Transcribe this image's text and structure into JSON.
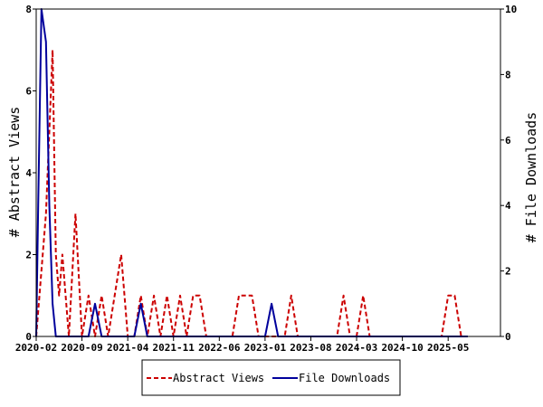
{
  "chart_data": {
    "type": "line",
    "ylabel_left": "# Abstract Views",
    "ylabel_right": "# File Downloads",
    "ylim_left": [
      0,
      8
    ],
    "ylim_right": [
      0,
      10
    ],
    "yticks_left": [
      "0",
      "2",
      "4",
      "6",
      "8"
    ],
    "yticks_right": [
      "0",
      "2",
      "4",
      "6",
      "8",
      "10"
    ],
    "xlim": [
      0,
      71
    ],
    "xticks": [
      {
        "month_index": 0,
        "label": "2020-02"
      },
      {
        "month_index": 7,
        "label": "2020-09"
      },
      {
        "month_index": 14,
        "label": "2021-04"
      },
      {
        "month_index": 21,
        "label": "2021-11"
      },
      {
        "month_index": 28,
        "label": "2022-06"
      },
      {
        "month_index": 35,
        "label": "2023-01"
      },
      {
        "month_index": 42,
        "label": "2023-08"
      },
      {
        "month_index": 49,
        "label": "2024-03"
      },
      {
        "month_index": 56,
        "label": "2024-10"
      },
      {
        "month_index": 63,
        "label": "2025-05"
      }
    ],
    "grid": false,
    "legend_position": "bottom",
    "series": [
      {
        "name": "Abstract Views",
        "axis": "left",
        "color": "#cc0000",
        "style": "dashed",
        "x": [
          0,
          0.5,
          1,
          1.5,
          2,
          2.5,
          3,
          3.5,
          4,
          5,
          6,
          7,
          8,
          9,
          10,
          11,
          12,
          13,
          14,
          15,
          16,
          17,
          18,
          19,
          20,
          21,
          22,
          23,
          24,
          25,
          26,
          27,
          28,
          29,
          30,
          31,
          32,
          33,
          34,
          35,
          36,
          37,
          38,
          39,
          40,
          41,
          42,
          43,
          44,
          45,
          46,
          47,
          48,
          49,
          50,
          51,
          52,
          53,
          54,
          55,
          56,
          57,
          58,
          59,
          60,
          61,
          62,
          63,
          64,
          65,
          66
        ],
        "values": [
          0,
          1,
          2,
          3,
          5,
          7,
          2,
          1,
          2,
          0,
          3,
          0,
          1,
          0,
          1,
          0,
          1,
          2,
          0,
          0,
          1,
          0,
          1,
          0,
          1,
          0,
          1,
          0,
          1,
          1,
          0,
          0,
          0,
          0,
          0,
          1,
          1,
          1,
          0,
          0,
          0,
          0,
          0,
          1,
          0,
          0,
          0,
          0,
          0,
          0,
          0,
          1,
          0,
          0,
          1,
          0,
          0,
          0,
          0,
          0,
          0,
          0,
          0,
          0,
          0,
          0,
          0,
          1,
          1,
          0,
          0
        ]
      },
      {
        "name": "File Downloads",
        "axis": "right",
        "color": "#00009c",
        "style": "solid",
        "x": [
          0,
          0.3,
          0.8,
          1.5,
          2,
          2.5,
          3,
          3.3,
          4,
          5,
          6,
          7,
          8,
          9,
          10,
          11,
          12,
          13,
          14,
          15,
          16,
          17,
          18,
          19,
          20,
          21,
          22,
          23,
          24,
          25,
          26,
          27,
          28,
          29,
          30,
          31,
          32,
          33,
          34,
          35,
          36,
          37,
          38,
          39,
          40,
          41,
          42,
          43,
          44,
          45,
          46,
          47,
          48,
          49,
          50,
          51,
          52,
          53,
          54,
          55,
          56,
          57,
          58,
          59,
          60,
          61,
          62,
          63,
          64,
          65,
          66
        ],
        "values": [
          0,
          4,
          10,
          9,
          4,
          1,
          0,
          0,
          0,
          0,
          0,
          0,
          0,
          1,
          0,
          0,
          0,
          0,
          0,
          0,
          1,
          0,
          0,
          0,
          0,
          0,
          0,
          0,
          0,
          0,
          0,
          0,
          0,
          0,
          0,
          0,
          0,
          0,
          0,
          0,
          1,
          0,
          0,
          0,
          0,
          0,
          0,
          0,
          0,
          0,
          0,
          0,
          0,
          0,
          0,
          0,
          0,
          0,
          0,
          0,
          0,
          0,
          0,
          0,
          0,
          0,
          0,
          0,
          0,
          0,
          0
        ]
      }
    ]
  }
}
